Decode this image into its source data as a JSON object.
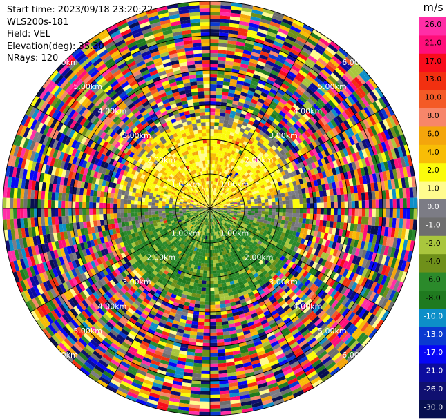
{
  "header": {
    "start_time": "Start time: 2023/09/18 23:20:22",
    "instrument": "WLS200s-181",
    "field": "Field: VEL",
    "elevation": "Elevation(deg): 35.30",
    "nrays": "NRays: 120"
  },
  "chart_data": {
    "type": "heatmap",
    "projection": "polar-ppi",
    "field": "VEL",
    "units_label": "m/s",
    "nrays": 120,
    "max_range_km": 6.0,
    "range_rings_km": [
      1.0,
      2.0,
      3.0,
      4.0,
      5.0,
      6.0
    ],
    "ring_labels": [
      "1.00km",
      "2.00km",
      "3.00km",
      "4.00km",
      "5.00km",
      "6.00km"
    ],
    "colorbar": {
      "ticks": [
        "26.0",
        "21.0",
        "17.0",
        "13.0",
        "10.0",
        "8.0",
        "6.0",
        "4.0",
        "2.0",
        "1.0",
        "0.0",
        "-1.0",
        "-2.0",
        "-4.0",
        "-6.0",
        "-8.0",
        "-10.0",
        "-13.0",
        "-17.0",
        "-21.0",
        "-26.0",
        "-30.0"
      ],
      "colors": [
        "#ff2ea6",
        "#ff0f7a",
        "#f80c1c",
        "#f23010",
        "#f45a26",
        "#f7866a",
        "#f4a50c",
        "#f8bd06",
        "#fbfb0c",
        "#fffb8e",
        "#7c7c85",
        "#6e6e6e",
        "#a9c63d",
        "#6f901a",
        "#2b8a2b",
        "#1f7a1f",
        "#0d8fc8",
        "#0a3ad0",
        "#0707f5",
        "#0c0c9e",
        "#101070",
        "#081050"
      ]
    },
    "regions": [
      {
        "name": "north-low-range",
        "range_km": [
          0,
          2.7
        ],
        "dominant_velocity": "2.0 to 4.0",
        "color_family": "yellow-orange"
      },
      {
        "name": "south-low-range",
        "range_km": [
          0,
          2.7
        ],
        "dominant_velocity": "-2.0 to -8.0",
        "color_family": "green"
      },
      {
        "name": "outer-noise",
        "range_km": [
          2.7,
          6.0
        ],
        "dominant_velocity": "mixed",
        "color_family": "multicolor"
      }
    ]
  }
}
